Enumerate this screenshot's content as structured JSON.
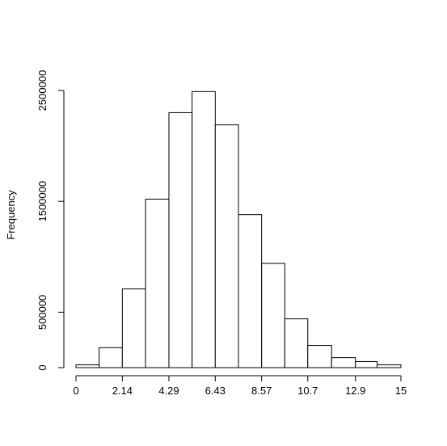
{
  "chart_data": {
    "type": "bar",
    "title": "",
    "xlabel": "",
    "ylabel": "Frequency",
    "bin_edges": [
      0,
      1.07,
      2.14,
      3.21,
      4.29,
      5.36,
      6.43,
      7.5,
      8.57,
      9.64,
      10.7,
      11.8,
      12.9,
      13.9,
      15
    ],
    "values": [
      25000,
      180000,
      710000,
      1520000,
      2300000,
      2490000,
      2190000,
      1380000,
      940000,
      440000,
      200000,
      90000,
      55000,
      25000
    ],
    "x_ticks": [
      0,
      2.14,
      4.29,
      6.43,
      8.57,
      10.7,
      12.9,
      15
    ],
    "x_tick_labels": [
      "0",
      "2.14",
      "4.29",
      "6.43",
      "8.57",
      "10.7",
      "12.9",
      "15"
    ],
    "y_ticks": [
      0,
      500000,
      1500000,
      2500000
    ],
    "y_tick_labels": [
      "0",
      "500000",
      "1500000",
      "2500000"
    ],
    "xlim": [
      0,
      15
    ],
    "ylim": [
      0,
      2500000
    ],
    "grid": false,
    "legend": "none",
    "colors": {
      "bar_fill": "#ffffff",
      "bar_stroke": "#000000"
    }
  }
}
